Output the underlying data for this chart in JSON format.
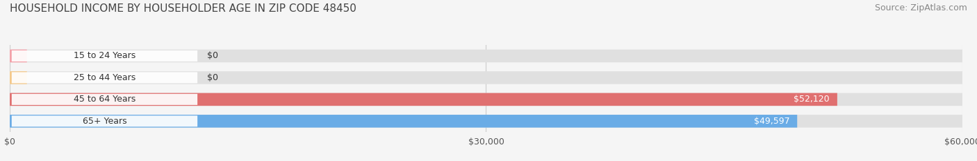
{
  "title": "HOUSEHOLD INCOME BY HOUSEHOLDER AGE IN ZIP CODE 48450",
  "source": "Source: ZipAtlas.com",
  "categories": [
    "15 to 24 Years",
    "25 to 44 Years",
    "45 to 64 Years",
    "65+ Years"
  ],
  "values": [
    0,
    0,
    52120,
    49597
  ],
  "bar_colors": [
    "#f4a0a8",
    "#f5c98a",
    "#e07070",
    "#6aace6"
  ],
  "label_colors": [
    "#555555",
    "#555555",
    "#ffffff",
    "#ffffff"
  ],
  "value_labels": [
    "$0",
    "$0",
    "$52,120",
    "$49,597"
  ],
  "xlim": [
    0,
    60000
  ],
  "xticks": [
    0,
    30000,
    60000
  ],
  "xticklabels": [
    "$0",
    "$30,000",
    "$60,000"
  ],
  "background_color": "#f5f5f5",
  "bar_background": "#e0e0e0",
  "title_fontsize": 11,
  "source_fontsize": 9,
  "tick_fontsize": 9,
  "label_fontsize": 9,
  "bar_height": 0.58,
  "figsize": [
    14.06,
    2.33
  ]
}
